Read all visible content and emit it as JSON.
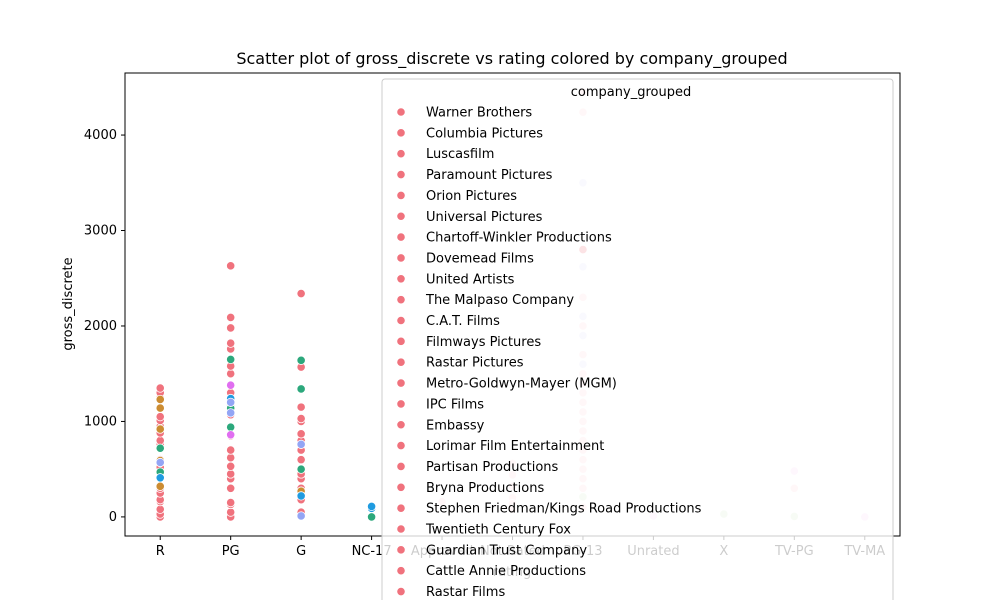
{
  "chart_data": {
    "type": "scatter",
    "title": "Scatter plot of gross_discrete vs rating colored by company_grouped",
    "xlabel": "rating",
    "ylabel": "gross_discrete",
    "categories": [
      "R",
      "PG",
      "G",
      "NC-17",
      "Approved",
      "Not Rated",
      "PG-13",
      "Unrated",
      "X",
      "TV-PG",
      "TV-MA"
    ],
    "yticks": [
      0,
      1000,
      2000,
      3000,
      4000
    ],
    "ylim": [
      -200,
      4650
    ],
    "grid": false,
    "legend": {
      "title": "company_grouped",
      "placement": "top-right",
      "color": "#f0727d",
      "entries": [
        "Warner Brothers",
        "Columbia Pictures",
        "Luscasfilm",
        "Paramount Pictures",
        "Orion Pictures",
        "Universal Pictures",
        "Chartoff-Winkler Productions",
        "Dovemead Films",
        "United Artists",
        "The Malpaso Company",
        "C.A.T. Films",
        "Filmways Pictures",
        "Rastar Pictures",
        "Metro-Goldwyn-Mayer (MGM)",
        "IPC Films",
        "Embassy",
        "Lorimar Film Entertainment",
        "Partisan Productions",
        "Bryna Productions",
        "Stephen Friedman/Kings Road Productions",
        "Twentieth Century Fox",
        "Guardian Trust Company",
        "Cattle Annie Productions",
        "Rastar Films"
      ]
    },
    "series": [
      {
        "color": "#f0727d",
        "points": [
          [
            "R",
            0
          ],
          [
            "R",
            30
          ],
          [
            "R",
            80
          ],
          [
            "R",
            160
          ],
          [
            "R",
            180
          ],
          [
            "R",
            250
          ],
          [
            "R",
            300
          ],
          [
            "R",
            420
          ],
          [
            "R",
            520
          ],
          [
            "R",
            600
          ],
          [
            "R",
            760
          ],
          [
            "R",
            800
          ],
          [
            "R",
            880
          ],
          [
            "R",
            950
          ],
          [
            "R",
            1010
          ],
          [
            "R",
            1050
          ],
          [
            "R",
            1250
          ],
          [
            "R",
            1300
          ],
          [
            "R",
            1350
          ],
          [
            "PG",
            0
          ],
          [
            "PG",
            50
          ],
          [
            "PG",
            130
          ],
          [
            "PG",
            150
          ],
          [
            "PG",
            300
          ],
          [
            "PG",
            400
          ],
          [
            "PG",
            450
          ],
          [
            "PG",
            530
          ],
          [
            "PG",
            620
          ],
          [
            "PG",
            700
          ],
          [
            "PG",
            850
          ],
          [
            "PG",
            1070
          ],
          [
            "PG",
            1170
          ],
          [
            "PG",
            1300
          ],
          [
            "PG",
            1500
          ],
          [
            "PG",
            1580
          ],
          [
            "PG",
            1760
          ],
          [
            "PG",
            1820
          ],
          [
            "PG",
            1980
          ],
          [
            "PG",
            2090
          ],
          [
            "PG",
            2630
          ],
          [
            "G",
            50
          ],
          [
            "G",
            180
          ],
          [
            "G",
            300
          ],
          [
            "G",
            400
          ],
          [
            "G",
            450
          ],
          [
            "G",
            600
          ],
          [
            "G",
            700
          ],
          [
            "G",
            800
          ],
          [
            "G",
            870
          ],
          [
            "G",
            1000
          ],
          [
            "G",
            1030
          ],
          [
            "G",
            1150
          ],
          [
            "G",
            1570
          ],
          [
            "G",
            2340
          ],
          [
            "PG-13",
            2800
          ]
        ]
      },
      {
        "color": "#cc8c32",
        "points": [
          [
            "R",
            320
          ],
          [
            "R",
            590
          ],
          [
            "R",
            920
          ],
          [
            "R",
            1140
          ],
          [
            "R",
            1230
          ],
          [
            "G",
            270
          ]
        ]
      },
      {
        "color": "#2ca87c",
        "points": [
          [
            "R",
            470
          ],
          [
            "R",
            720
          ],
          [
            "PG",
            1650
          ],
          [
            "PG",
            1140
          ],
          [
            "PG",
            940
          ],
          [
            "G",
            500
          ],
          [
            "G",
            1340
          ],
          [
            "G",
            1640
          ],
          [
            "NC-17",
            0
          ]
        ]
      },
      {
        "color": "#1f9be0",
        "points": [
          [
            "R",
            410
          ],
          [
            "PG",
            1240
          ],
          [
            "G",
            220
          ],
          [
            "NC-17",
            90
          ],
          [
            "NC-17",
            110
          ]
        ]
      },
      {
        "color": "#e06ef0",
        "points": [
          [
            "PG",
            860
          ],
          [
            "PG",
            1380
          ]
        ]
      },
      {
        "color": "#93a5f5",
        "points": [
          [
            "R",
            570
          ],
          [
            "PG",
            1090
          ],
          [
            "PG",
            1200
          ],
          [
            "G",
            10
          ],
          [
            "G",
            760
          ]
        ]
      },
      {
        "color": "#e0e0f8",
        "points": [
          [
            "PG-13",
            3500
          ],
          [
            "PG-13",
            2620
          ],
          [
            "PG-13",
            2100
          ],
          [
            "PG-13",
            1900
          ],
          [
            "PG-13",
            1600
          ]
        ]
      },
      {
        "color": "#fcd8dc",
        "points": [
          [
            "PG-13",
            4240
          ],
          [
            "PG-13",
            4450
          ],
          [
            "PG-13",
            2300
          ],
          [
            "PG-13",
            2000
          ],
          [
            "PG-13",
            1700
          ],
          [
            "PG-13",
            1500
          ],
          [
            "PG-13",
            1400
          ],
          [
            "PG-13",
            1300
          ],
          [
            "PG-13",
            1200
          ],
          [
            "PG-13",
            1100
          ],
          [
            "PG-13",
            1000
          ],
          [
            "PG-13",
            900
          ],
          [
            "PG-13",
            800
          ],
          [
            "PG-13",
            700
          ],
          [
            "PG-13",
            600
          ],
          [
            "PG-13",
            500
          ],
          [
            "PG-13",
            400
          ],
          [
            "PG-13",
            300
          ],
          [
            "PG-13",
            100
          ],
          [
            "Not Rated",
            560
          ],
          [
            "Not Rated",
            440
          ],
          [
            "Not Rated",
            320
          ],
          [
            "Not Rated",
            200
          ],
          [
            "Not Rated",
            140
          ],
          [
            "Not Rated",
            80
          ],
          [
            "Approved",
            160
          ],
          [
            "Unrated",
            20
          ],
          [
            "TV-PG",
            300
          ]
        ]
      },
      {
        "color": "#f8d4f4",
        "points": [
          [
            "TV-PG",
            480
          ],
          [
            "TV-MA",
            0
          ],
          [
            "Unrated",
            10
          ]
        ]
      },
      {
        "color": "#d8eccc",
        "points": [
          [
            "PG-13",
            210
          ],
          [
            "X",
            30
          ],
          [
            "TV-PG",
            5
          ]
        ]
      }
    ]
  }
}
